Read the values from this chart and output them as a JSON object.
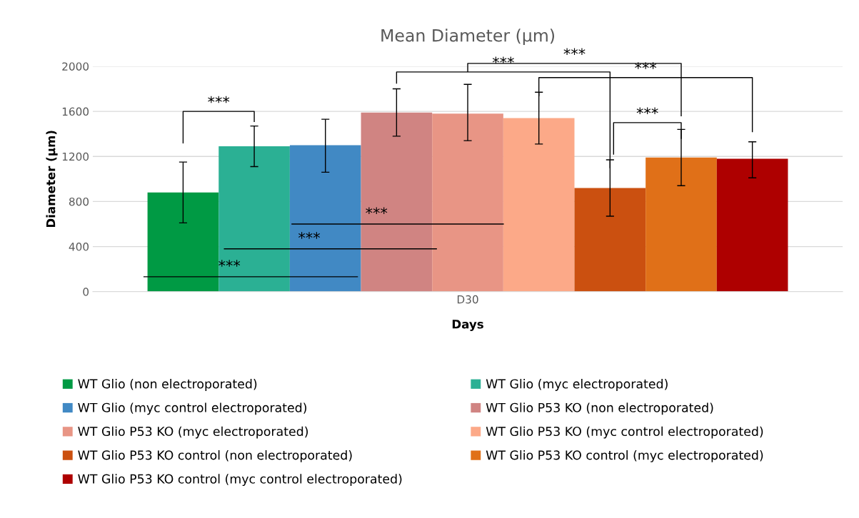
{
  "chart_data": {
    "type": "bar",
    "title": "Mean Diameter (µm)",
    "xlabel": "Days",
    "ylabel": "Diameter (µm)",
    "categories": [
      "D30"
    ],
    "series": [
      {
        "name": "WT Glio (non electroporated)",
        "color": "#009a44",
        "values": [
          880
        ],
        "errors": [
          [
            610,
            1150
          ]
        ]
      },
      {
        "name": "WT Glio (myc electroporated)",
        "color": "#2bb094",
        "values": [
          1290
        ],
        "errors": [
          [
            1110,
            1470
          ]
        ]
      },
      {
        "name": "WT Glio (myc control electroporated)",
        "color": "#4189c4",
        "values": [
          1300
        ],
        "errors": [
          [
            1060,
            1530
          ]
        ]
      },
      {
        "name": "WT Glio P53 KO (non electroporated)",
        "color": "#d08482",
        "values": [
          1590
        ],
        "errors": [
          [
            1380,
            1800
          ]
        ]
      },
      {
        "name": "WT Glio P53 KO (myc electroporated)",
        "color": "#e89585",
        "values": [
          1580
        ],
        "errors": [
          [
            1340,
            1840
          ]
        ]
      },
      {
        "name": "WT Glio P53 KO (myc control electroporated)",
        "color": "#fca988",
        "values": [
          1540
        ],
        "errors": [
          [
            1310,
            1770
          ]
        ]
      },
      {
        "name": "WT Glio P53 KO control (non electroporated)",
        "color": "#cb5010",
        "values": [
          920
        ],
        "errors": [
          [
            670,
            1170
          ]
        ]
      },
      {
        "name": "WT Glio P53 KO control (myc electroporated)",
        "color": "#e07018",
        "values": [
          1190
        ],
        "errors": [
          [
            940,
            1440
          ]
        ]
      },
      {
        "name": "WT Glio P53 KO control (myc control electroporated)",
        "color": "#ae0000",
        "values": [
          1180
        ],
        "errors": [
          [
            1010,
            1330
          ]
        ]
      }
    ],
    "ylim": [
      0,
      2000
    ],
    "yticks": [
      0,
      400,
      800,
      1200,
      1600,
      2000
    ],
    "grid": "y",
    "legend": "bottom",
    "annotations": [
      "***",
      "***",
      "***",
      "***",
      "***",
      "***",
      "***",
      "***"
    ]
  }
}
